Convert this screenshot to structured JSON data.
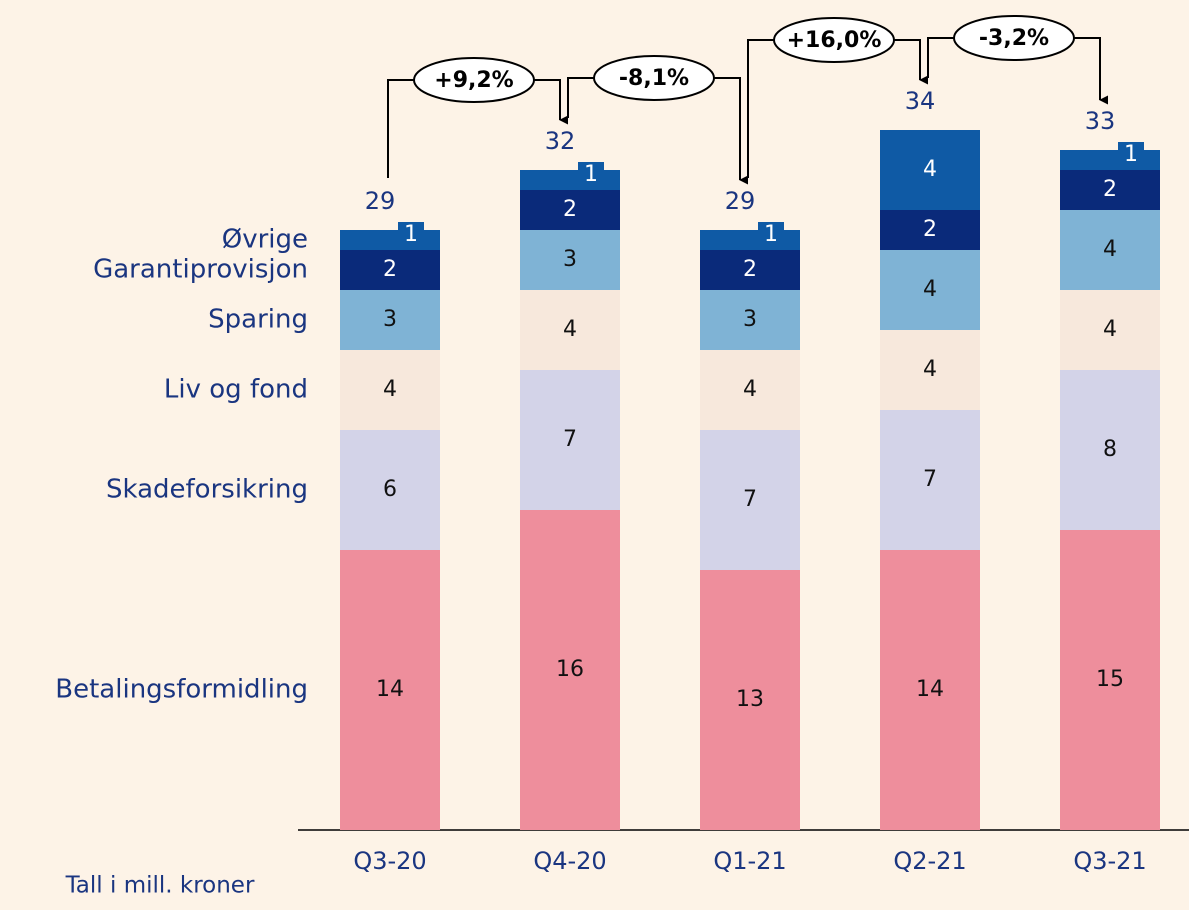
{
  "chart_data": {
    "type": "stacked_bar",
    "categories": [
      "Q3-20",
      "Q4-20",
      "Q1-21",
      "Q2-21",
      "Q3-21"
    ],
    "series": [
      {
        "name": "Betalingsformidling",
        "color": "#ee8e9c",
        "values": [
          14,
          16,
          13,
          14,
          15
        ]
      },
      {
        "name": "Skadeforsikring",
        "color": "#d3d3e8",
        "values": [
          6,
          7,
          7,
          7,
          8
        ]
      },
      {
        "name": "Liv og fond",
        "color": "#f7e8dc",
        "values": [
          4,
          4,
          4,
          4,
          4
        ]
      },
      {
        "name": "Sparing",
        "color": "#7fb3d5",
        "values": [
          3,
          3,
          3,
          4,
          4
        ]
      },
      {
        "name": "Garantiprovisjon",
        "color": "#0a2a7a",
        "values": [
          2,
          2,
          2,
          2,
          2
        ]
      },
      {
        "name": "Øvrige",
        "color": "#0f5aa5",
        "values": [
          1,
          1,
          1,
          4,
          1
        ]
      }
    ],
    "totals": [
      29,
      32,
      29,
      34,
      33
    ],
    "changes": [
      "+9,2%",
      "-8,1%",
      "+16,0%",
      "-3,2%"
    ],
    "footnote": "Tall i mill. kroner"
  }
}
